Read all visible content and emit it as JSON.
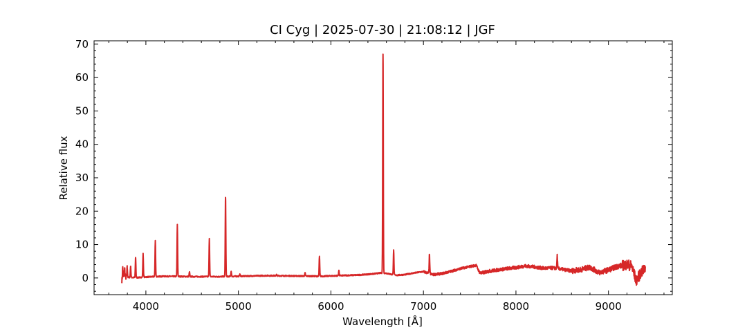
{
  "chart_data": {
    "type": "line",
    "title": "CI Cyg | 2025-07-30 | 21:08:12 | JGF",
    "xlabel": "Wavelength [Å]",
    "ylabel": "Relative flux",
    "xlim": [
      3440,
      9690
    ],
    "ylim": [
      -5,
      71
    ],
    "xticks": [
      4000,
      5000,
      6000,
      7000,
      8000,
      9000
    ],
    "yticks": [
      0,
      10,
      20,
      30,
      40,
      50,
      60,
      70
    ],
    "grid": false,
    "legend": "none",
    "series": [
      {
        "color": "#d62728",
        "continuum": [
          [
            3740,
            -0.8
          ],
          [
            3760,
            0.3
          ],
          [
            3800,
            0.2
          ],
          [
            3900,
            0.1
          ],
          [
            4000,
            0.3
          ],
          [
            4200,
            0.5
          ],
          [
            4500,
            0.4
          ],
          [
            4800,
            0.4
          ],
          [
            5000,
            0.5
          ],
          [
            5300,
            0.7
          ],
          [
            5600,
            0.6
          ],
          [
            5900,
            0.5
          ],
          [
            6100,
            0.7
          ],
          [
            6300,
            0.9
          ],
          [
            6450,
            1.2
          ],
          [
            6540,
            1.5
          ],
          [
            6600,
            1.4
          ],
          [
            6700,
            0.8
          ],
          [
            6800,
            1.0
          ],
          [
            6900,
            1.5
          ],
          [
            7000,
            1.9
          ],
          [
            7100,
            1.0
          ],
          [
            7200,
            1.3
          ],
          [
            7300,
            2.0
          ],
          [
            7400,
            2.8
          ],
          [
            7500,
            3.4
          ],
          [
            7570,
            3.8
          ],
          [
            7600,
            2.0
          ],
          [
            7620,
            1.4
          ],
          [
            7700,
            2.0
          ],
          [
            7800,
            2.4
          ],
          [
            7900,
            2.8
          ],
          [
            8000,
            3.1
          ],
          [
            8100,
            3.6
          ],
          [
            8200,
            3.3
          ],
          [
            8300,
            2.9
          ],
          [
            8400,
            3.0
          ],
          [
            8500,
            2.6
          ],
          [
            8600,
            2.1
          ],
          [
            8700,
            2.5
          ],
          [
            8800,
            3.2
          ],
          [
            8900,
            1.6
          ],
          [
            9000,
            2.4
          ],
          [
            9100,
            3.5
          ],
          [
            9200,
            4.0
          ],
          [
            9250,
            3.6
          ],
          [
            9300,
            -0.8
          ],
          [
            9350,
            1.5
          ],
          [
            9400,
            3.0
          ]
        ],
        "emission_lines": [
          [
            3750,
            3.3
          ],
          [
            3771,
            2.8
          ],
          [
            3798,
            3.0
          ],
          [
            3835,
            3.5
          ],
          [
            3889,
            6.1
          ],
          [
            3970,
            7.2
          ],
          [
            4102,
            11.2
          ],
          [
            4340,
            15.9
          ],
          [
            4471,
            1.8
          ],
          [
            4686,
            11.8
          ],
          [
            4861,
            24.1
          ],
          [
            4922,
            2.0
          ],
          [
            5016,
            1.2
          ],
          [
            5412,
            1.0
          ],
          [
            5721,
            1.5
          ],
          [
            5876,
            6.5
          ],
          [
            6086,
            2.3
          ],
          [
            6563,
            67.0
          ],
          [
            6678,
            8.4
          ],
          [
            7065,
            7.0
          ],
          [
            8446,
            6.7
          ]
        ]
      }
    ]
  }
}
